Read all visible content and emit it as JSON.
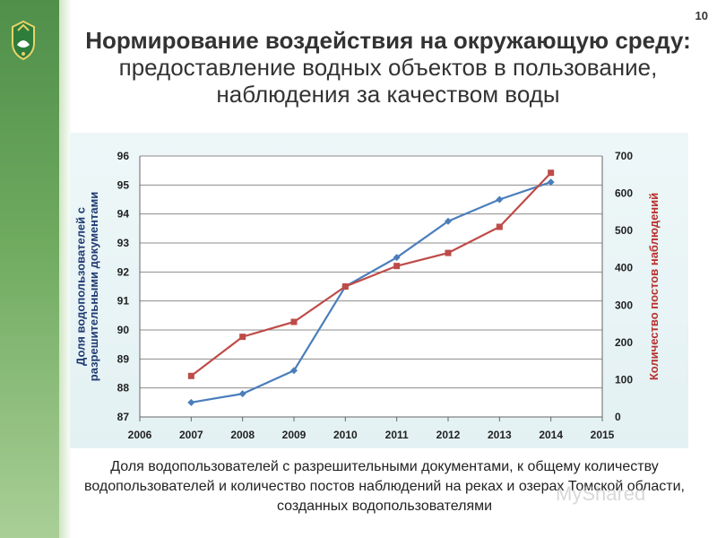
{
  "slide": {
    "page_number": "10",
    "title_bold": "Нормирование воздействия на окружающую среду:",
    "title_regular": "предоставление водных объектов в пользование, наблюдения за качеством воды",
    "caption": "Доля водопользователей с разрешительными документами, к общему количеству водопользователей и количество постов наблюдений на реках и озерах Томской области, созданных водопользователями",
    "watermark": "MyShared"
  },
  "chart_data": {
    "type": "line",
    "title": "",
    "x": [
      2007,
      2008,
      2009,
      2010,
      2011,
      2012,
      2013,
      2014
    ],
    "xlim": [
      2006,
      2015
    ],
    "xticks": [
      2006,
      2007,
      2008,
      2009,
      2010,
      2011,
      2012,
      2013,
      2014,
      2015
    ],
    "ylabel_left": "Доля водопользователей с разрешительными документами",
    "ylabel_right": "Количество постов наблюдений",
    "ylim_left": [
      87,
      96
    ],
    "yticks_left": [
      87,
      88,
      89,
      90,
      91,
      92,
      93,
      94,
      95,
      96
    ],
    "ylim_right": [
      0,
      700
    ],
    "yticks_right": [
      0,
      100,
      200,
      300,
      400,
      500,
      600,
      700
    ],
    "grid": true,
    "series": [
      {
        "axis": "left",
        "color": "#4a7ebb",
        "marker": "diamond",
        "values": [
          87.5,
          87.8,
          88.6,
          91.5,
          92.5,
          93.75,
          94.5,
          95.1
        ]
      },
      {
        "axis": "right",
        "color": "#be4b48",
        "marker": "square",
        "values": [
          110,
          215,
          255,
          350,
          405,
          440,
          510,
          655
        ]
      }
    ]
  }
}
